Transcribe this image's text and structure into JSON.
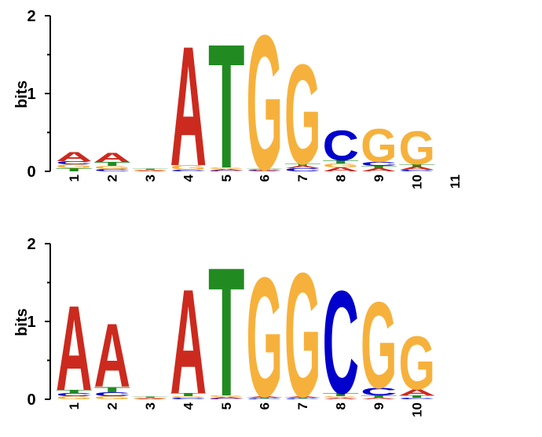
{
  "colors": {
    "A": "#cc2a1e",
    "C": "#0000cc",
    "G": "#f6b13c",
    "T": "#218b21",
    "axis": "#000000"
  },
  "chart_data": [
    {
      "type": "sequence-logo",
      "ylabel": "bits",
      "ylim": [
        0,
        2
      ],
      "yticks": [
        "0",
        "1",
        "2"
      ],
      "positions": [
        "1",
        "2",
        "3",
        "4",
        "5",
        "6",
        "7",
        "8",
        "9",
        "10",
        "11"
      ],
      "stacks": [
        [
          [
            "T",
            0.04
          ],
          [
            "G",
            0.05
          ],
          [
            "C",
            0.04
          ],
          [
            "A",
            0.12
          ]
        ],
        [
          [
            "C",
            0.03
          ],
          [
            "G",
            0.04
          ],
          [
            "T",
            0.05
          ],
          [
            "A",
            0.12
          ]
        ],
        [
          [
            "A",
            0.01
          ],
          [
            "G",
            0.01
          ],
          [
            "T",
            0.01
          ]
        ],
        [
          [
            "C",
            0.02
          ],
          [
            "G",
            0.06
          ],
          [
            "A",
            1.58
          ]
        ],
        [
          [
            "C",
            0.01
          ],
          [
            "A",
            0.02
          ],
          [
            "G",
            0.02
          ],
          [
            "T",
            1.64
          ]
        ],
        [
          [
            "A",
            0.01
          ],
          [
            "C",
            0.01
          ],
          [
            "T",
            0.01
          ],
          [
            "G",
            1.78
          ]
        ],
        [
          [
            "C",
            0.04
          ],
          [
            "A",
            0.03
          ],
          [
            "T",
            0.03
          ],
          [
            "G",
            1.32
          ]
        ],
        [
          [
            "A",
            0.05
          ],
          [
            "G",
            0.05
          ],
          [
            "T",
            0.04
          ],
          [
            "C",
            0.4
          ]
        ],
        [
          [
            "A",
            0.04
          ],
          [
            "T",
            0.03
          ],
          [
            "C",
            0.05
          ],
          [
            "G",
            0.44
          ]
        ],
        [
          [
            "C",
            0.02
          ],
          [
            "A",
            0.04
          ],
          [
            "T",
            0.03
          ],
          [
            "G",
            0.44
          ]
        ],
        []
      ]
    },
    {
      "type": "sequence-logo",
      "ylabel": "bits",
      "ylim": [
        0,
        2
      ],
      "yticks": [
        "0",
        "1",
        "2"
      ],
      "positions": [
        "1",
        "2",
        "3",
        "4",
        "5",
        "6",
        "7",
        "8",
        "9",
        "10"
      ],
      "stacks": [
        [
          [
            "G",
            0.04
          ],
          [
            "C",
            0.04
          ],
          [
            "T",
            0.04
          ],
          [
            "A",
            1.12
          ]
        ],
        [
          [
            "G",
            0.04
          ],
          [
            "C",
            0.05
          ],
          [
            "T",
            0.07
          ],
          [
            "A",
            0.84
          ]
        ],
        [
          [
            "A",
            0.01
          ],
          [
            "G",
            0.01
          ],
          [
            "T",
            0.01
          ]
        ],
        [
          [
            "C",
            0.02
          ],
          [
            "G",
            0.02
          ],
          [
            "T",
            0.04
          ],
          [
            "A",
            1.38
          ]
        ],
        [
          [
            "C",
            0.01
          ],
          [
            "A",
            0.02
          ],
          [
            "G",
            0.02
          ],
          [
            "T",
            1.7
          ]
        ],
        [
          [
            "C",
            0.01
          ],
          [
            "T",
            0.01
          ],
          [
            "A",
            0.02
          ],
          [
            "G",
            1.58
          ]
        ],
        [
          [
            "C",
            0.01
          ],
          [
            "T",
            0.01
          ],
          [
            "A",
            0.02
          ],
          [
            "G",
            1.64
          ]
        ],
        [
          [
            "A",
            0.02
          ],
          [
            "G",
            0.02
          ],
          [
            "T",
            0.04
          ],
          [
            "C",
            1.36
          ]
        ],
        [
          [
            "A",
            0.02
          ],
          [
            "T",
            0.03
          ],
          [
            "C",
            0.1
          ],
          [
            "G",
            1.14
          ]
        ],
        [
          [
            "C",
            0.02
          ],
          [
            "T",
            0.03
          ],
          [
            "A",
            0.08
          ],
          [
            "G",
            0.7
          ]
        ]
      ]
    }
  ]
}
